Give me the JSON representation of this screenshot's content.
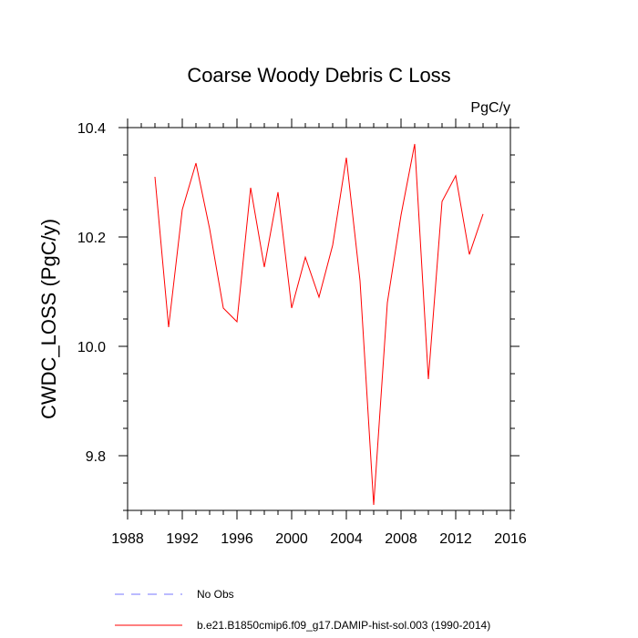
{
  "chart_data": {
    "type": "line",
    "title": "Coarse Woody Debris C Loss",
    "units": "PgC/y",
    "xlabel": "",
    "ylabel": "CWDC_LOSS  (PgC/y)",
    "xlim": [
      1988,
      2016
    ],
    "ylim": [
      9.7,
      10.4
    ],
    "x_ticks": [
      1988,
      1992,
      1996,
      2000,
      2004,
      2008,
      2012,
      2016
    ],
    "y_ticks": [
      9.8,
      10.0,
      10.2,
      10.4
    ],
    "y_tick_labels": [
      "9.8",
      "10.0",
      "10.2",
      "10.4"
    ],
    "grid": false,
    "legend_position": "bottom",
    "series": [
      {
        "name": "b.e21.B1850cmip6.f09_g17.DAMIP-hist-sol.003 (1990-2014)",
        "color": "#ff0000",
        "style": "solid",
        "x": [
          1990,
          1991,
          1992,
          1993,
          1994,
          1995,
          1996,
          1997,
          1998,
          1999,
          2000,
          2001,
          2002,
          2003,
          2004,
          2005,
          2006,
          2007,
          2008,
          2009,
          2010,
          2011,
          2012,
          2013,
          2014
        ],
        "y": [
          10.31,
          10.035,
          10.25,
          10.335,
          10.215,
          10.07,
          10.045,
          10.29,
          10.145,
          10.282,
          10.07,
          10.163,
          10.09,
          10.185,
          10.345,
          10.12,
          9.71,
          10.08,
          10.24,
          10.37,
          9.94,
          10.265,
          10.312,
          10.168,
          10.242
        ]
      }
    ],
    "legend": [
      {
        "label": "No Obs",
        "color": "#7777ff",
        "style": "dashed"
      },
      {
        "label": "b.e21.B1850cmip6.f09_g17.DAMIP-hist-sol.003 (1990-2014)",
        "color": "#ff0000",
        "style": "solid"
      }
    ]
  }
}
